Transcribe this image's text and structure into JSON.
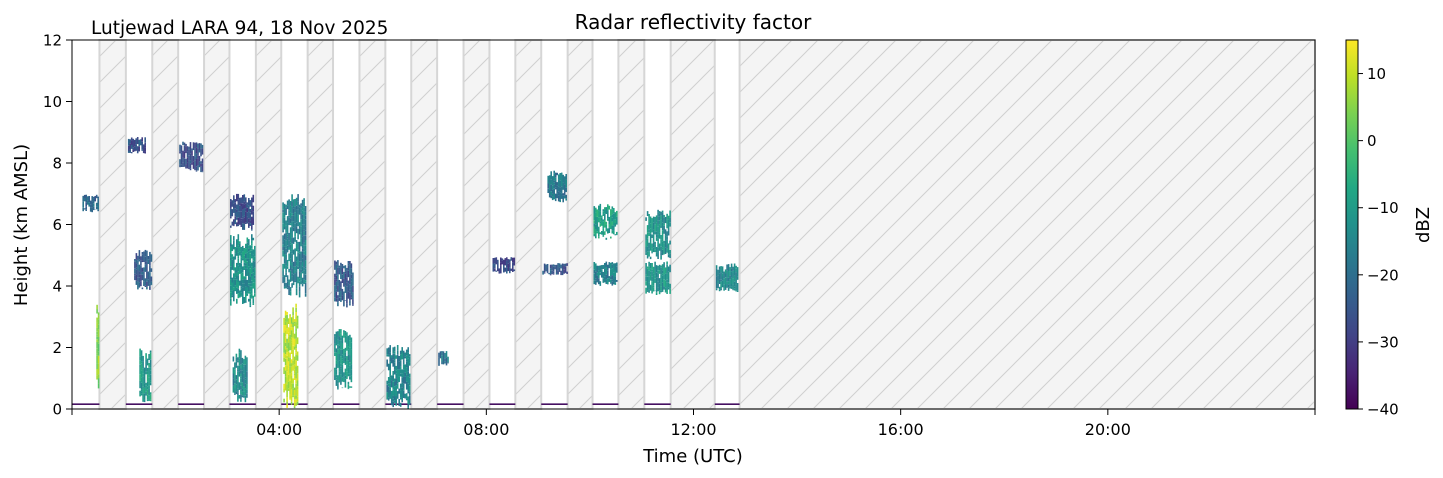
{
  "chart_data": {
    "type": "heatmap",
    "title": "Radar reflectivity factor",
    "subtitle": "Lutjewad LARA 94, 18 Nov 2025",
    "xlabel": "Time (UTC)",
    "ylabel": "Height (km AMSL)",
    "xlim_hours": [
      0,
      24
    ],
    "ylim": [
      0,
      12
    ],
    "x_ticks": [
      {
        "value": 0,
        "label": ""
      },
      {
        "value": 4,
        "label": "04:00"
      },
      {
        "value": 8,
        "label": "08:00"
      },
      {
        "value": 12,
        "label": "12:00"
      },
      {
        "value": 16,
        "label": "16:00"
      },
      {
        "value": 20,
        "label": "20:00"
      },
      {
        "value": 24,
        "label": ""
      }
    ],
    "y_ticks": [
      0,
      2,
      4,
      6,
      8,
      10,
      12
    ],
    "colorbar": {
      "label": "dBZ",
      "range": [
        -40,
        15
      ],
      "ticks": [
        10,
        0,
        -10,
        -20,
        -30,
        -40
      ],
      "tick_labels": [
        "10",
        "0",
        "−10",
        "−20",
        "−30",
        "−40"
      ],
      "colormap": "viridis"
    },
    "no_data_periods_hours": [
      [
        0.53,
        1.04
      ],
      [
        1.55,
        2.05
      ],
      [
        2.55,
        3.04
      ],
      [
        3.55,
        4.04
      ],
      [
        4.55,
        5.04
      ],
      [
        5.55,
        6.05
      ],
      [
        6.55,
        7.05
      ],
      [
        7.56,
        8.06
      ],
      [
        8.56,
        9.06
      ],
      [
        9.57,
        10.05
      ],
      [
        10.55,
        11.05
      ],
      [
        11.56,
        12.41
      ],
      [
        12.89,
        24
      ]
    ],
    "data_periods_hours": [
      [
        0,
        0.53
      ],
      [
        1.04,
        1.55
      ],
      [
        2.05,
        2.55
      ],
      [
        3.04,
        3.55
      ],
      [
        4.04,
        4.55
      ],
      [
        5.04,
        5.55
      ],
      [
        6.05,
        6.55
      ],
      [
        7.05,
        7.56
      ],
      [
        8.06,
        8.56
      ],
      [
        9.06,
        9.57
      ],
      [
        10.05,
        10.55
      ],
      [
        11.05,
        11.56
      ],
      [
        12.41,
        12.89
      ]
    ],
    "ground_clutter": {
      "height_km": 0.15,
      "dbz": -38
    },
    "echoes": [
      {
        "t": [
          0.2,
          0.5
        ],
        "h": [
          6.4,
          7.0
        ],
        "dbz": -22
      },
      {
        "t": [
          0.47,
          0.52
        ],
        "h": [
          0.6,
          3.5
        ],
        "dbz": 5
      },
      {
        "t": [
          1.08,
          1.41
        ],
        "h": [
          8.3,
          8.85
        ],
        "dbz": -26
      },
      {
        "t": [
          1.2,
          1.53
        ],
        "h": [
          3.8,
          5.2
        ],
        "dbz": -24
      },
      {
        "t": [
          1.3,
          1.53
        ],
        "h": [
          0.2,
          2.0
        ],
        "dbz": -10
      },
      {
        "t": [
          2.07,
          2.53
        ],
        "h": [
          7.7,
          8.7
        ],
        "dbz": -26
      },
      {
        "t": [
          3.05,
          3.52
        ],
        "h": [
          3.3,
          5.7
        ],
        "dbz": -12
      },
      {
        "t": [
          3.05,
          3.5
        ],
        "h": [
          5.8,
          7.0
        ],
        "dbz": -26
      },
      {
        "t": [
          3.1,
          3.38
        ],
        "h": [
          0.2,
          2.0
        ],
        "dbz": -14
      },
      {
        "t": [
          4.06,
          4.52
        ],
        "h": [
          3.6,
          7.2
        ],
        "dbz": -16
      },
      {
        "t": [
          4.08,
          4.35
        ],
        "h": [
          0.0,
          3.5
        ],
        "dbz": 9
      },
      {
        "t": [
          5.06,
          5.43
        ],
        "h": [
          3.3,
          4.85
        ],
        "dbz": -24
      },
      {
        "t": [
          5.06,
          5.4
        ],
        "h": [
          0.6,
          2.6
        ],
        "dbz": -12
      },
      {
        "t": [
          6.07,
          6.53
        ],
        "h": [
          0.0,
          2.1
        ],
        "dbz": -15
      },
      {
        "t": [
          7.07,
          7.25
        ],
        "h": [
          1.4,
          1.9
        ],
        "dbz": -18
      },
      {
        "t": [
          8.12,
          8.54
        ],
        "h": [
          4.4,
          4.95
        ],
        "dbz": -27
      },
      {
        "t": [
          9.08,
          9.55
        ],
        "h": [
          4.35,
          4.75
        ],
        "dbz": -25
      },
      {
        "t": [
          9.18,
          9.55
        ],
        "h": [
          6.7,
          7.75
        ],
        "dbz": -18
      },
      {
        "t": [
          10.07,
          10.53
        ],
        "h": [
          5.5,
          6.7
        ],
        "dbz": -9
      },
      {
        "t": [
          10.07,
          10.53
        ],
        "h": [
          4.0,
          4.8
        ],
        "dbz": -16
      },
      {
        "t": [
          11.07,
          11.54
        ],
        "h": [
          4.85,
          6.5
        ],
        "dbz": -12
      },
      {
        "t": [
          11.07,
          11.54
        ],
        "h": [
          3.7,
          4.8
        ],
        "dbz": -11
      },
      {
        "t": [
          12.43,
          12.85
        ],
        "h": [
          3.8,
          4.75
        ],
        "dbz": -14
      }
    ]
  }
}
